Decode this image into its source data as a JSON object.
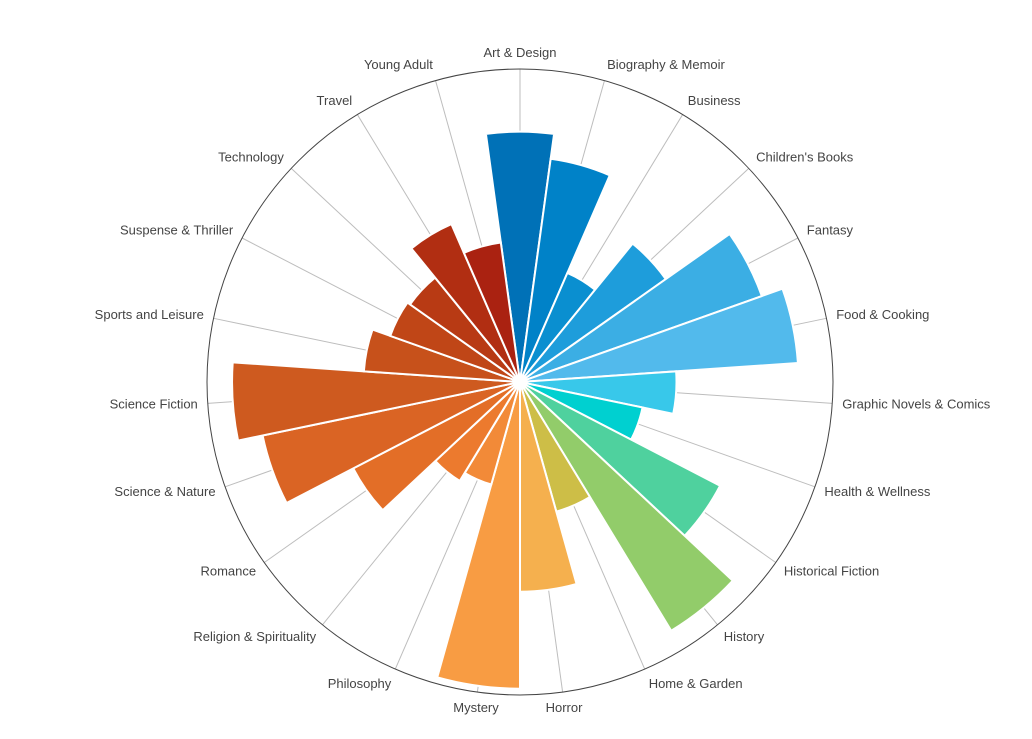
{
  "chart_data": {
    "type": "polar-bar",
    "title": "",
    "categories": [
      "Art & Design",
      "Biography & Memoir",
      "Business",
      "Children's Books",
      "Fantasy",
      "Food & Cooking",
      "Graphic Novels & Comics",
      "Health & Wellness",
      "Historical Fiction",
      "History",
      "Home & Garden",
      "Horror",
      "Mystery",
      "Philosophy",
      "Religion & Spirituality",
      "Romance",
      "Science & Nature",
      "Science Fiction",
      "Sports and Leisure",
      "Suspense & Thriller",
      "Technology",
      "Travel",
      "Young Adult"
    ],
    "values": [
      80,
      72,
      38,
      57,
      82,
      89,
      50,
      40,
      72,
      93,
      43,
      67,
      98,
      34,
      37,
      60,
      84,
      92,
      50,
      44,
      43,
      55,
      45
    ],
    "rmax": 100,
    "colors": [
      "#0071B7",
      "#0082C8",
      "#0A8FD0",
      "#1E9DDB",
      "#3BAEE4",
      "#52BAEC",
      "#38C8EA",
      "#00D0D0",
      "#4FD19E",
      "#92CC6A",
      "#CDBE47",
      "#F5B04E",
      "#F89C43",
      "#F28A38",
      "#EC7A2E",
      "#E36E27",
      "#DA6424",
      "#CE5A1F",
      "#C7511B",
      "#C04617",
      "#B83A14",
      "#B12E12",
      "#AA2211"
    ]
  }
}
